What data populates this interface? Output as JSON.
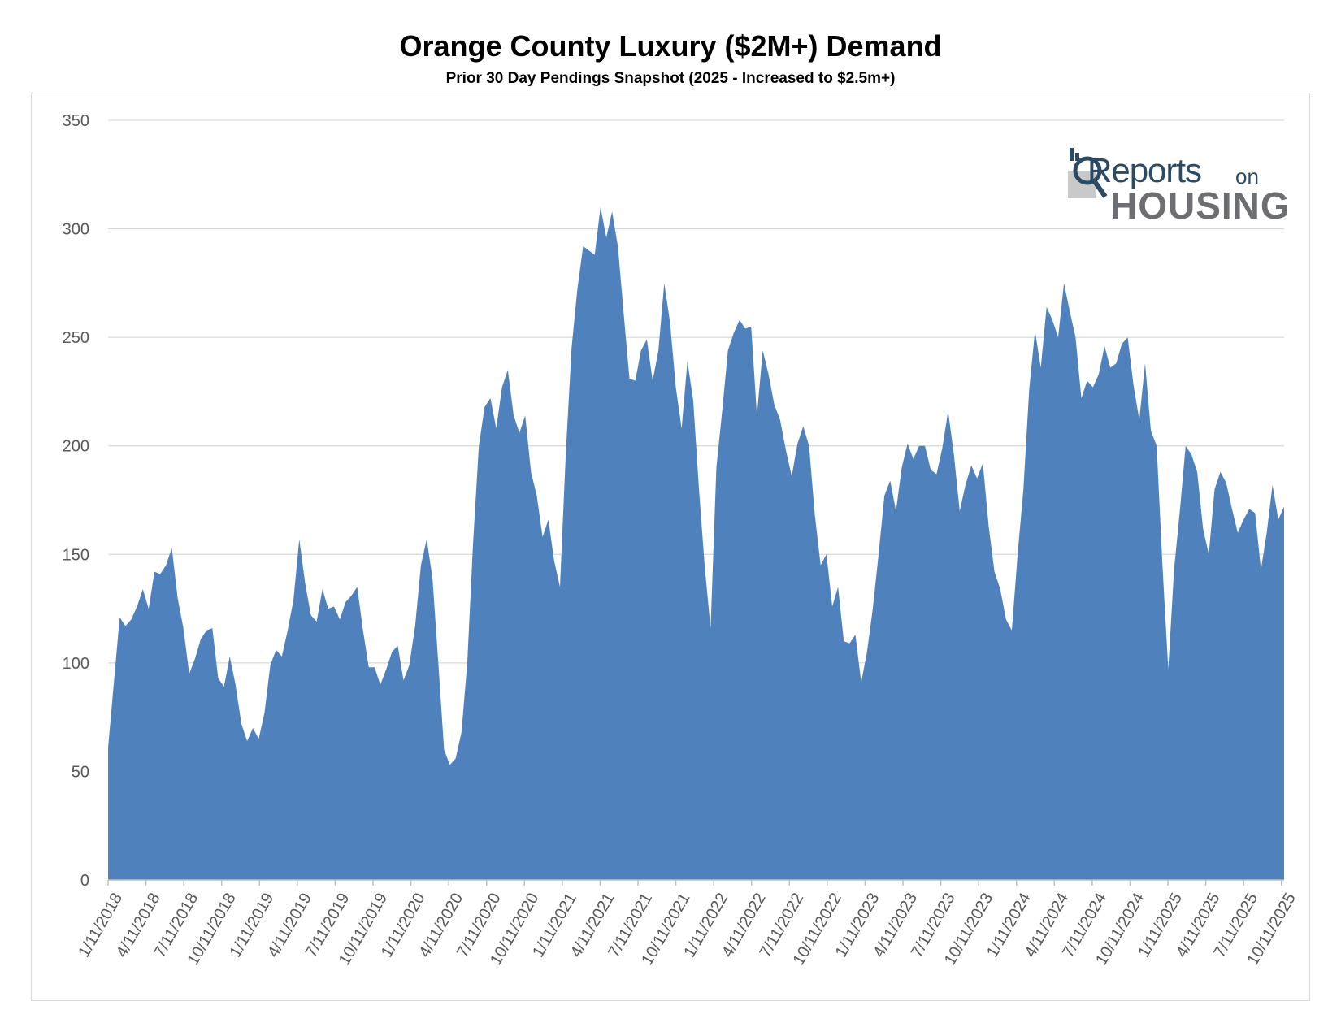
{
  "chart_data": {
    "type": "area",
    "title": "Orange County Luxury ($2M+) Demand",
    "subtitle": "Prior 30 Day Pendings Snapshot (2025 - Increased to $2.5m+)",
    "xlabel": "",
    "ylabel": "",
    "ylim": [
      0,
      350
    ],
    "yticks": [
      0,
      50,
      100,
      150,
      200,
      250,
      300,
      350
    ],
    "grid": true,
    "area_color": "#4f81bd",
    "x_tick_labels": [
      "1/11/2018",
      "4/11/2018",
      "7/11/2018",
      "10/11/2018",
      "1/11/2019",
      "4/11/2019",
      "7/11/2019",
      "10/11/2019",
      "1/11/2020",
      "4/11/2020",
      "7/11/2020",
      "10/11/2020",
      "1/11/2021",
      "4/11/2021",
      "7/11/2021",
      "10/11/2021",
      "1/11/2022",
      "4/11/2022",
      "7/11/2022",
      "10/11/2022",
      "1/11/2023",
      "4/11/2023",
      "7/11/2023",
      "10/11/2023",
      "1/11/2024",
      "4/11/2024",
      "7/11/2024",
      "10/11/2024",
      "1/11/2025",
      "4/11/2025",
      "7/11/2025",
      "10/11/2025"
    ],
    "series": [
      {
        "values": [
          61,
          91,
          121,
          117,
          120,
          126,
          134,
          125,
          142,
          141,
          145,
          153,
          130,
          116,
          95,
          102,
          111,
          115,
          116,
          93,
          89,
          103,
          90,
          72,
          64,
          70,
          65,
          77,
          99,
          106,
          103,
          115,
          129,
          157,
          137,
          122,
          119,
          134,
          125,
          126,
          120,
          128,
          131,
          135,
          115,
          98,
          98,
          90,
          97,
          105,
          108,
          92,
          99,
          117,
          145,
          157,
          139,
          100,
          60,
          53,
          56,
          68,
          100,
          155,
          200,
          218,
          222,
          208,
          227,
          235,
          214,
          206,
          214,
          188,
          177,
          158,
          166,
          147,
          135,
          196,
          245,
          272,
          292,
          290,
          288,
          310,
          296,
          308,
          292,
          261,
          231,
          230,
          244,
          249,
          230,
          244,
          275,
          257,
          227,
          208,
          239,
          221,
          180,
          144,
          116,
          190,
          216,
          244,
          252,
          258,
          254,
          255,
          214,
          244,
          233,
          219,
          212,
          198,
          186,
          201,
          209,
          200,
          168,
          145,
          150,
          126,
          135,
          110,
          109,
          113,
          91,
          105,
          125,
          150,
          177,
          184,
          170,
          190,
          201,
          194,
          200,
          200,
          189,
          187,
          199,
          216,
          196,
          170,
          182,
          191,
          185,
          192,
          163,
          142,
          134,
          120,
          115,
          150,
          180,
          226,
          253,
          236,
          264,
          258,
          250,
          275,
          262,
          250,
          222,
          230,
          227,
          233,
          246,
          236,
          238,
          247,
          250,
          228,
          212,
          238,
          207,
          200,
          145,
          97,
          143,
          170,
          200,
          196,
          188,
          162,
          150,
          180,
          188,
          183,
          171,
          160,
          166,
          171,
          169,
          143,
          160,
          182,
          166,
          172
        ]
      }
    ]
  },
  "logo": {
    "reports": "Reports",
    "on": "on",
    "housing": "HOUSING"
  }
}
